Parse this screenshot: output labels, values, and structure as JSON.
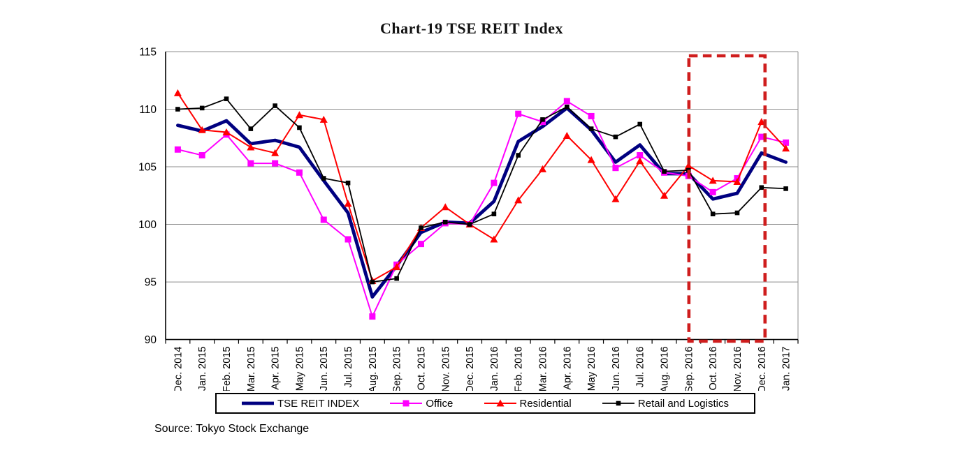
{
  "title": "Chart-19 TSE REIT Index",
  "source": "Source: Tokyo Stock Exchange",
  "colors": {
    "grid": "#8c8c8c",
    "axis": "#000000",
    "highlight_box": "#cf1d1d",
    "background": "#ffffff"
  },
  "chart_data": {
    "type": "line",
    "title": "Chart-19 TSE REIT Index",
    "xlabel": "",
    "ylabel": "",
    "ylim": [
      90,
      115
    ],
    "yticks": [
      90,
      95,
      100,
      105,
      110,
      115
    ],
    "grid": true,
    "legend_position": "bottom",
    "categories": [
      "Dec. 2014",
      "Jan. 2015",
      "Feb. 2015",
      "Mar. 2015",
      "Apr. 2015",
      "May 2015",
      "Jun. 2015",
      "Jul. 2015",
      "Aug. 2015",
      "Sep. 2015",
      "Oct. 2015",
      "Nov. 2015",
      "Dec. 2015",
      "Jan. 2016",
      "Feb. 2016",
      "Mar. 2016",
      "Apr. 2016",
      "May 2016",
      "Jun. 2016",
      "Jul. 2016",
      "Aug. 2016",
      "Sep. 2016",
      "Oct. 2016",
      "Nov. 2016",
      "Dec. 2016",
      "Jan. 2017"
    ],
    "series": [
      {
        "name": "TSE REIT INDEX",
        "color": "#000080",
        "marker": "none",
        "line_width": 4.8,
        "values": [
          108.6,
          108.1,
          109.0,
          107.0,
          107.3,
          106.7,
          103.8,
          101.0,
          93.7,
          96.4,
          99.3,
          100.2,
          100.1,
          102.0,
          107.2,
          108.5,
          110.1,
          108.2,
          105.4,
          106.9,
          104.4,
          104.4,
          102.2,
          102.7,
          106.2,
          105.4
        ]
      },
      {
        "name": "Office",
        "color": "#ff00ff",
        "marker": "square",
        "line_width": 2,
        "values": [
          106.5,
          106.0,
          107.8,
          105.3,
          105.3,
          104.5,
          100.4,
          98.7,
          92.0,
          96.5,
          98.3,
          100.1,
          100.0,
          103.6,
          109.6,
          108.9,
          110.7,
          109.4,
          104.9,
          106.0,
          104.5,
          104.2,
          102.8,
          104.0,
          107.6,
          107.1
        ]
      },
      {
        "name": "Residential",
        "color": "#ff0000",
        "marker": "triangle",
        "line_width": 2,
        "values": [
          111.4,
          108.2,
          108.0,
          106.7,
          106.2,
          109.5,
          109.1,
          101.8,
          95.1,
          96.3,
          99.7,
          101.5,
          100.0,
          98.7,
          102.1,
          104.8,
          107.7,
          105.6,
          102.2,
          105.5,
          102.5,
          105.1,
          103.8,
          103.7,
          108.9,
          106.6
        ]
      },
      {
        "name": "Retail and Logistics",
        "color": "#000000",
        "marker": "square-small",
        "line_width": 1.8,
        "values": [
          110.0,
          110.1,
          110.9,
          108.3,
          110.3,
          108.4,
          104.0,
          103.6,
          95.0,
          95.3,
          99.7,
          100.2,
          100.0,
          100.9,
          106.0,
          109.1,
          110.2,
          108.3,
          107.6,
          108.7,
          104.6,
          104.7,
          100.9,
          101.0,
          103.2,
          103.1
        ]
      }
    ],
    "highlight_box": {
      "start_month": "Sep. 2016",
      "end_month": "Dec. 2016",
      "color": "#cf1d1d",
      "style": "dashed"
    }
  }
}
